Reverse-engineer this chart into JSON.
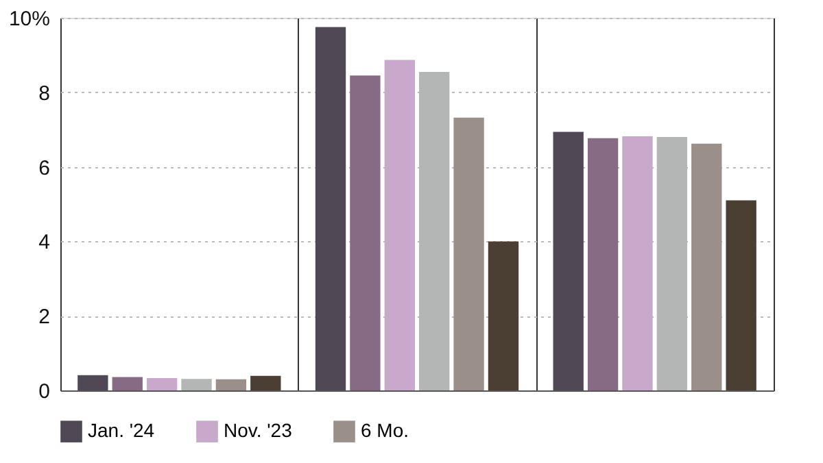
{
  "chart_data": {
    "type": "bar",
    "categories": [
      null,
      null,
      null
    ],
    "series": [
      {
        "name": "Jan. '24",
        "color": "#514855",
        "values": [
          0.41,
          9.75,
          6.94
        ]
      },
      {
        "color": "#876b84",
        "values": [
          0.36,
          8.45,
          6.77
        ]
      },
      {
        "name": "Nov. '23",
        "color": "#c8a8cb",
        "values": [
          0.33,
          8.87,
          6.82
        ]
      },
      {
        "color": "#b3b6b5",
        "values": [
          0.31,
          8.55,
          6.8
        ]
      },
      {
        "name": "6 Mo.",
        "color": "#9b8f8a",
        "values": [
          0.3,
          7.32,
          6.62
        ]
      },
      {
        "color": "#4b3f33",
        "values": [
          0.39,
          4.0,
          5.1
        ]
      }
    ],
    "ylim": [
      0,
      10
    ],
    "yticks": [
      0,
      2,
      4,
      6,
      8,
      {
        "value": 10,
        "label": "10%"
      }
    ],
    "grid": true,
    "legend": "bottom"
  }
}
